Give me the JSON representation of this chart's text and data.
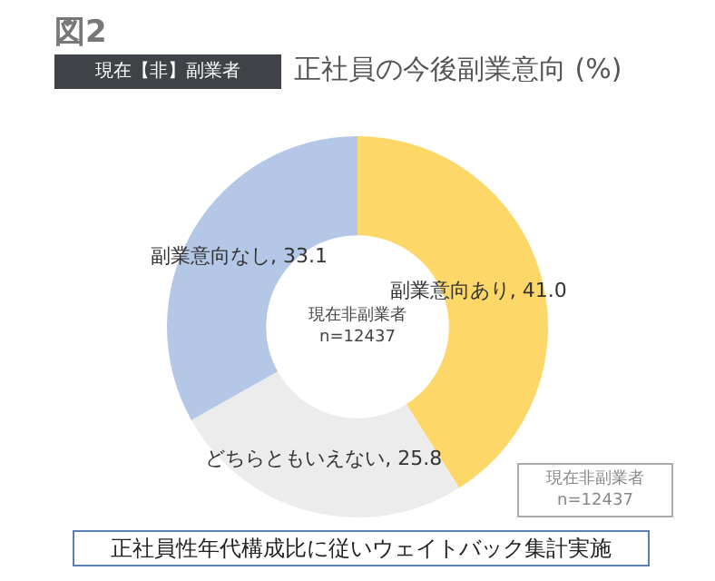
{
  "chart_data": {
    "type": "donut",
    "title": "正社員の今後副業意向 (%)",
    "categories": [
      "副業意向あり",
      "どちらともいえない",
      "副業意向なし"
    ],
    "values": [
      41.0,
      25.8,
      33.1
    ],
    "colors": [
      "#fdd767",
      "#ececec",
      "#b4c7e7"
    ],
    "value_labels": [
      ", 41.0",
      ", 25.8",
      ", 33.1"
    ],
    "legend": false,
    "annotations": [
      "図2",
      "現在【非】副業者",
      "現在非副業者\nn=12437",
      "現在非副業者\nn=12437",
      "正社員性年代構成比に従いウェイトバック集計実施"
    ]
  }
}
